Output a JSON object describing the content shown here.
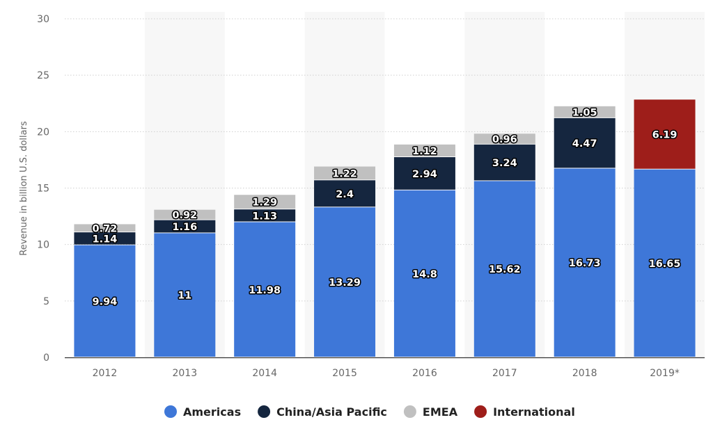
{
  "chart_data": {
    "type": "bar",
    "stacked": true,
    "title": "",
    "xlabel": "",
    "ylabel": "Revenue in billion U.S. dollars",
    "ylim": [
      0,
      30
    ],
    "yticks": [
      "0",
      "5",
      "10",
      "15",
      "20",
      "25",
      "30"
    ],
    "grid": true,
    "legend_position": "bottom",
    "categories": [
      "2012",
      "2013",
      "2014",
      "2015",
      "2016",
      "2017",
      "2018",
      "2019*"
    ],
    "series": [
      {
        "name": "Americas",
        "color": "#3e77d8",
        "values": [
          9.94,
          11,
          11.98,
          13.29,
          14.8,
          15.62,
          16.73,
          16.65
        ],
        "labels": [
          "9.94",
          "11",
          "11.98",
          "13.29",
          "14.8",
          "15.62",
          "16.73",
          "16.65"
        ]
      },
      {
        "name": "China/Asia Pacific",
        "color": "#15263f",
        "values": [
          1.14,
          1.16,
          1.13,
          2.4,
          2.94,
          3.24,
          4.47,
          null
        ],
        "labels": [
          "1.14",
          "1.16",
          "1.13",
          "2.4",
          "2.94",
          "3.24",
          "4.47",
          null
        ]
      },
      {
        "name": "EMEA",
        "color": "#c0c0c0",
        "values": [
          0.72,
          0.92,
          1.29,
          1.22,
          1.12,
          0.96,
          1.05,
          null
        ],
        "labels": [
          "0.72",
          "0.92",
          "1.29",
          "1.22",
          "1.12",
          "0.96",
          "1.05",
          null
        ]
      },
      {
        "name": "International",
        "color": "#9e1e1a",
        "values": [
          null,
          null,
          null,
          null,
          null,
          null,
          null,
          6.19
        ],
        "labels": [
          null,
          null,
          null,
          null,
          null,
          null,
          null,
          "6.19"
        ]
      }
    ]
  }
}
